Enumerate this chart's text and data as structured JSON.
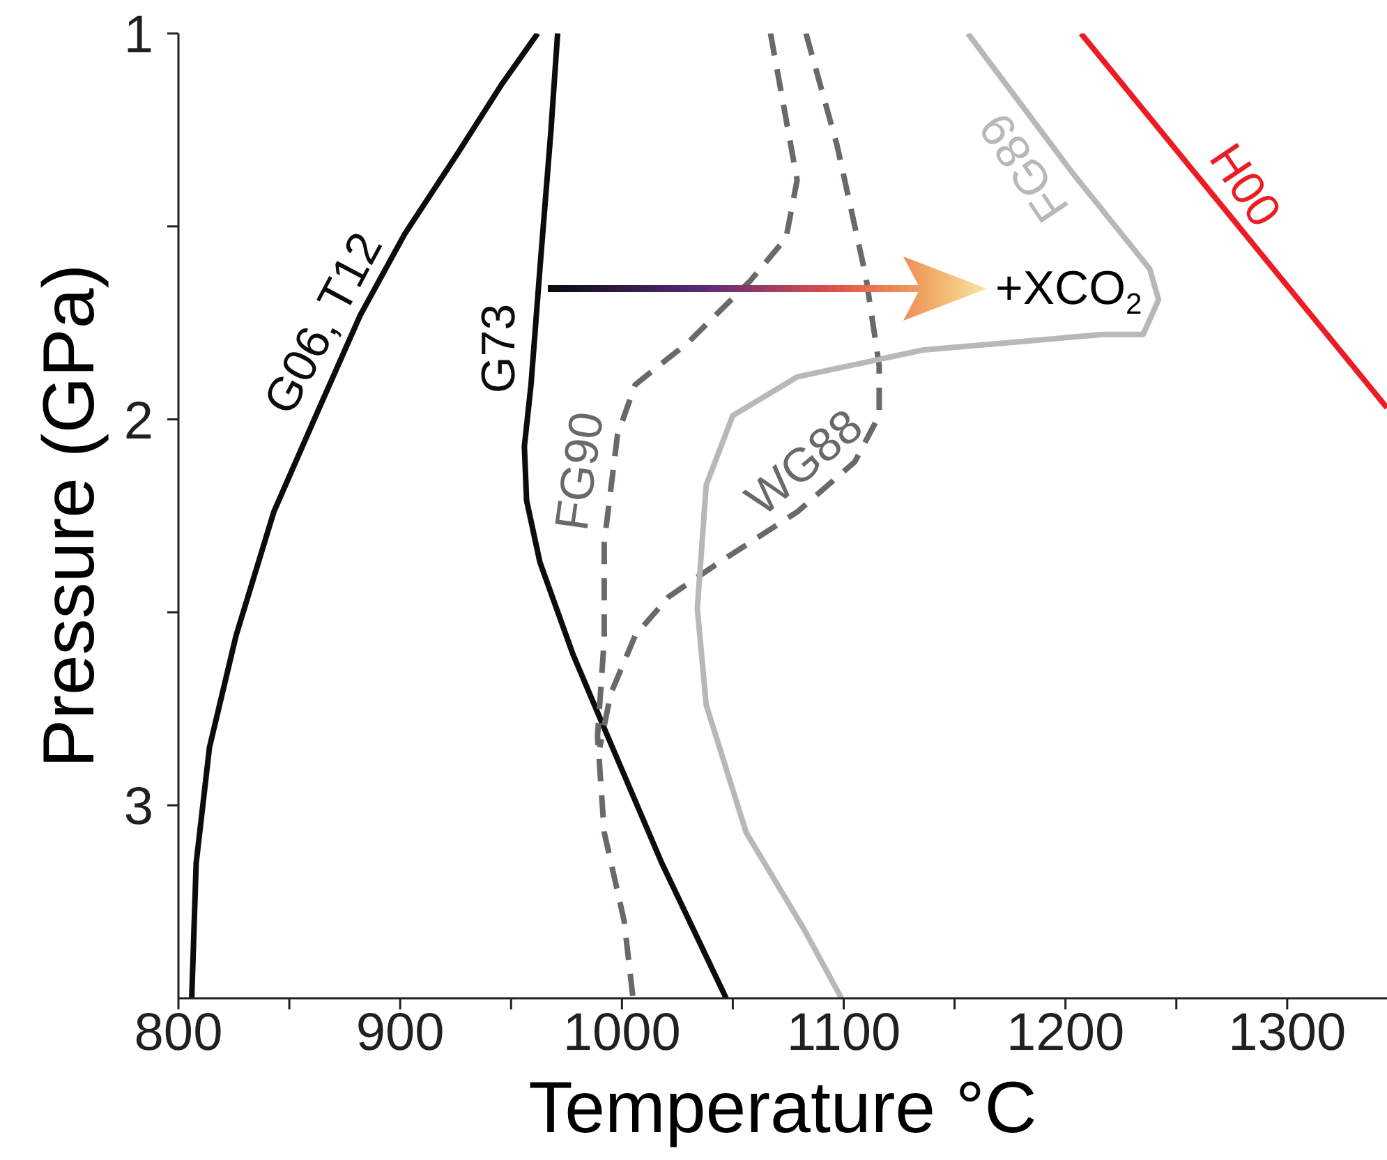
{
  "chart_data": {
    "type": "line",
    "xlabel": "Temperature °C",
    "ylabel": "Pressure (GPa)",
    "xlim": [
      800,
      1345
    ],
    "ylim": [
      3.5,
      1
    ],
    "xticks": [
      800,
      {
        "value": 850,
        "label": null
      },
      900,
      {
        "value": 950,
        "label": null
      },
      1000,
      {
        "value": 1050,
        "label": null
      },
      1100,
      {
        "value": 1150,
        "label": null
      },
      1200,
      {
        "value": 1250,
        "label": null
      },
      1300
    ],
    "yticks": [
      1,
      {
        "value": 1.5,
        "label": null
      },
      2,
      {
        "value": 2.5,
        "label": null
      },
      3
    ],
    "grid": false,
    "marker": "none",
    "series": [
      {
        "name": "G06, T12",
        "color": "#0c0c0c",
        "line_style": "solid",
        "x": [
          962,
          946,
          926,
          902,
          882,
          862,
          843,
          826,
          814,
          808,
          806
        ],
        "values": [
          1,
          1.13,
          1.31,
          1.52,
          1.73,
          1.99,
          2.24,
          2.56,
          2.85,
          3.15,
          3.5
        ]
      },
      {
        "name": "G73",
        "color": "#0c0c0c",
        "line_style": "solid",
        "x": [
          971,
          968,
          963,
          959,
          956,
          957,
          963,
          978,
          992,
          1018,
          1047
        ],
        "values": [
          1,
          1.25,
          1.61,
          1.91,
          2.07,
          2.21,
          2.37,
          2.61,
          2.8,
          3.15,
          3.5
        ]
      },
      {
        "name": "FG90",
        "color": "#6d6868",
        "line_style": "dashed",
        "x": [
          1067,
          1079,
          1074,
          1058,
          1030,
          1006,
          998,
          992,
          992,
          989,
          992,
          1001,
          1005
        ],
        "values": [
          1,
          1.38,
          1.53,
          1.64,
          1.8,
          1.91,
          2.04,
          2.32,
          2.57,
          2.82,
          3.07,
          3.3,
          3.5
        ]
      },
      {
        "name": "WG88",
        "color": "#6d6868",
        "line_style": "dashed",
        "x": [
          1083,
          1097,
          1110,
          1116,
          1116,
          1105,
          1079,
          1044,
          1021,
          1006,
          995,
          990
        ],
        "values": [
          1,
          1.29,
          1.63,
          1.86,
          1.99,
          2.11,
          2.24,
          2.37,
          2.46,
          2.56,
          2.71,
          2.85
        ]
      },
      {
        "name": "FG89",
        "color": "#b8b8bb",
        "line_style": "solid",
        "x": [
          1156,
          1203,
          1238,
          1242,
          1235,
          1217,
          1136,
          1079,
          1050,
          1038,
          1034,
          1038,
          1056,
          1082,
          1099
        ],
        "values": [
          1,
          1.36,
          1.61,
          1.69,
          1.78,
          1.78,
          1.82,
          1.89,
          1.99,
          2.17,
          2.49,
          2.74,
          3.07,
          3.32,
          3.5
        ]
      },
      {
        "name": "H00",
        "color": "#ec1c24",
        "line_style": "solid",
        "x": [
          1207,
          1345
        ],
        "values": [
          1,
          1.97
        ]
      }
    ],
    "annotations": [
      "+XCO$_{2}$"
    ]
  }
}
